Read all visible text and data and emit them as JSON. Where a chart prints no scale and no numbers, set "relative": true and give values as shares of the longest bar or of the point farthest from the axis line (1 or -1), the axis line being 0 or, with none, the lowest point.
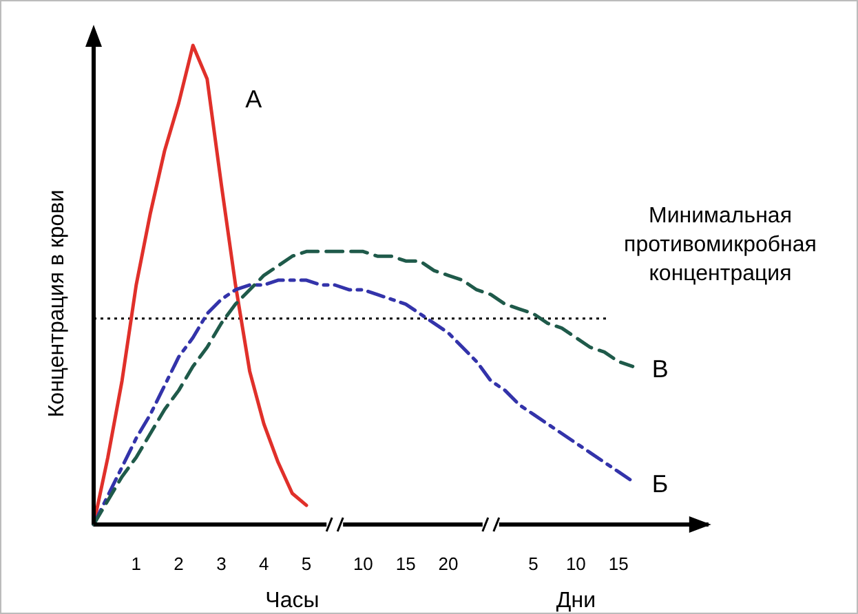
{
  "chart_data": {
    "type": "line",
    "relative": true,
    "ylabel": "Концентрация в крови",
    "categories": [
      null,
      null,
      null,
      "1",
      null,
      null,
      "2",
      null,
      null,
      "3",
      null,
      null,
      "4",
      null,
      null,
      "5",
      null,
      null,
      null,
      "10",
      null,
      null,
      "15",
      null,
      null,
      "20",
      null,
      null,
      null,
      null,
      null,
      "5",
      null,
      null,
      "10",
      null,
      null,
      "15",
      null
    ],
    "annotations": [
      "Часы",
      "Дни"
    ],
    "ref_lines": [
      {
        "axis": "y",
        "value": 0.43,
        "label": "Минимальная противомикробная концентрация",
        "color": "#000000",
        "line_style": "dotted"
      }
    ],
    "series": [
      {
        "name": "А",
        "color": "#e0302a",
        "line_style": "solid",
        "values": [
          0,
          0.14,
          0.3,
          0.5,
          0.65,
          0.78,
          0.88,
          1,
          0.93,
          0.71,
          0.5,
          0.32,
          0.21,
          0.13,
          0.065,
          0.04,
          null,
          null,
          null,
          null,
          null,
          null,
          null,
          null,
          null,
          null,
          null,
          null,
          null,
          null,
          null,
          null,
          null,
          null,
          null,
          null,
          null,
          null,
          null
        ]
      },
      {
        "name": "Б",
        "color": "#3333aa",
        "line_style": "dashdot",
        "values": [
          0,
          0.06,
          0.12,
          0.18,
          0.23,
          0.29,
          0.35,
          0.39,
          0.44,
          0.47,
          0.49,
          0.5,
          0.5,
          0.51,
          0.51,
          0.51,
          0.5,
          0.5,
          0.49,
          0.49,
          0.48,
          0.47,
          0.46,
          0.44,
          0.42,
          0.4,
          0.37,
          0.34,
          0.3,
          0.28,
          0.25,
          0.23,
          0.21,
          0.19,
          0.17,
          0.15,
          0.13,
          0.11,
          0.09
        ]
      },
      {
        "name": "В",
        "color": "#1f5a4a",
        "line_style": "dashed",
        "values": [
          0,
          0.05,
          0.1,
          0.14,
          0.19,
          0.24,
          0.28,
          0.33,
          0.37,
          0.42,
          0.46,
          0.49,
          0.52,
          0.54,
          0.56,
          0.57,
          0.57,
          0.57,
          0.57,
          0.57,
          0.56,
          0.56,
          0.55,
          0.55,
          0.53,
          0.52,
          0.51,
          0.49,
          0.48,
          0.46,
          0.45,
          0.44,
          0.42,
          0.41,
          0.39,
          0.37,
          0.36,
          0.34,
          0.33
        ]
      }
    ]
  }
}
